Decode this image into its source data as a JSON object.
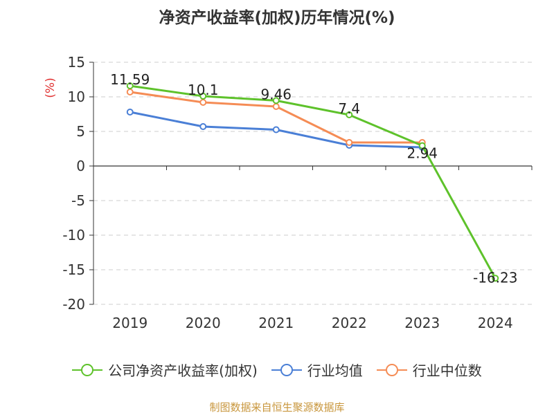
{
  "title": "净资产收益率(加权)历年情况(%)",
  "source": "制图数据来自恒生聚源数据库",
  "colors": {
    "company": "#5ec22b",
    "industry_avg": "#4a7fd6",
    "industry_median": "#f58c55",
    "axis": "#333333",
    "grid": "#cccccc",
    "unit": "#e03030"
  },
  "chart_data": {
    "type": "line",
    "ylabel": "(%)",
    "ylim": [
      -20,
      15
    ],
    "yticks": [
      15,
      10,
      5,
      0,
      -5,
      -10,
      -15,
      -20
    ],
    "grid": "horizontal-dashed",
    "legend_position": "bottom",
    "categories": [
      "2019",
      "2020",
      "2021",
      "2022",
      "2023",
      "2024"
    ],
    "series": [
      {
        "key": "company",
        "name": "公司净资产收益率(加权)",
        "values": [
          11.59,
          10.1,
          9.46,
          7.4,
          2.94,
          -16.23
        ],
        "labels": [
          "11.59",
          "10.1",
          "9.46",
          "7.4",
          "2.94",
          "-16.23"
        ]
      },
      {
        "key": "industry_avg",
        "name": "行业均值",
        "values": [
          7.8,
          5.7,
          5.25,
          3.0,
          2.7,
          null
        ]
      },
      {
        "key": "industry_median",
        "name": "行业中位数",
        "values": [
          10.7,
          9.2,
          8.6,
          3.4,
          3.4,
          null
        ]
      }
    ]
  }
}
